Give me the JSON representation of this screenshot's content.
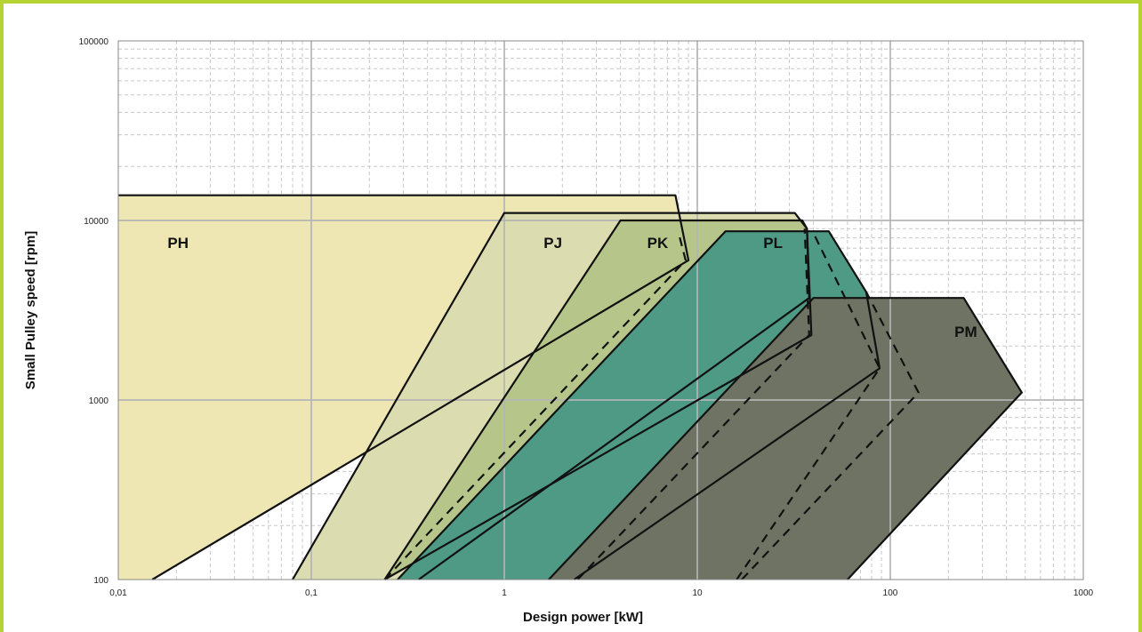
{
  "chart_data": {
    "type": "area",
    "xscale": "log",
    "yscale": "log",
    "xlim": [
      0.01,
      1000
    ],
    "ylim": [
      100,
      100000
    ],
    "xlabel": "Design power [kW]",
    "ylabel": "Small Pulley speed [rpm]",
    "xticks": [
      "0,01",
      "0,1",
      "1",
      "10",
      "100",
      "1000"
    ],
    "yticks": [
      "100",
      "1000",
      "10000",
      "100000"
    ],
    "grid": true,
    "colors": {
      "frame": "#b6d334",
      "PH": "#eee7b3",
      "PJ": "#dcdcb1",
      "PK": "#b6c68a",
      "PL": "#4e9a85",
      "PM": "#6e7363",
      "grid_major": "#c8c8c8",
      "grid_minor": "#c8c8c8"
    },
    "series": [
      {
        "name": "PH",
        "region": [
          [
            0.008,
            100
          ],
          [
            0.008,
            13800
          ],
          [
            7.7,
            13800
          ],
          [
            9,
            6000
          ],
          [
            0.015,
            100
          ]
        ]
      },
      {
        "name": "PJ",
        "region": [
          [
            0.08,
            100
          ],
          [
            1,
            11000
          ],
          [
            32,
            11000
          ],
          [
            37,
            9000
          ],
          [
            38,
            3700
          ],
          [
            0.36,
            100
          ]
        ]
      },
      {
        "name": "PK",
        "region": [
          [
            0.24,
            100
          ],
          [
            4,
            10000
          ],
          [
            35,
            10000
          ],
          [
            37,
            9000
          ],
          [
            39,
            2300
          ],
          [
            0.24,
            100
          ]
        ]
      },
      {
        "name": "PL",
        "region": [
          [
            0.28,
            100
          ],
          [
            14,
            8700
          ],
          [
            48,
            8700
          ],
          [
            75,
            4000
          ],
          [
            88,
            1500
          ],
          [
            2.3,
            100
          ]
        ]
      },
      {
        "name": "PM",
        "region": [
          [
            1.7,
            100
          ],
          [
            40,
            3700
          ],
          [
            240,
            3700
          ],
          [
            480,
            1100
          ],
          [
            60,
            100
          ]
        ]
      }
    ],
    "dashed_lines": [
      {
        "name": "PH-dashed",
        "points": [
          [
            0.24,
            100
          ],
          [
            8.7,
            6000
          ],
          [
            8,
            8500
          ]
        ]
      },
      {
        "name": "PJ-dashed",
        "points": [
          [
            2.4,
            100
          ],
          [
            38,
            2300
          ],
          [
            36,
            9000
          ]
        ]
      },
      {
        "name": "PK-dashed",
        "points": [
          [
            16,
            100
          ],
          [
            88,
            1500
          ],
          [
            40,
            8500
          ]
        ]
      },
      {
        "name": "PL-dashed",
        "points": [
          [
            17,
            100
          ],
          [
            140,
            1100
          ],
          [
            75,
            4000
          ]
        ]
      }
    ],
    "labels": [
      {
        "text": "PH",
        "x": 0.018,
        "y": 7500
      },
      {
        "text": "PJ",
        "x": 1.6,
        "y": 7500
      },
      {
        "text": "PK",
        "x": 5.5,
        "y": 7500
      },
      {
        "text": "PL",
        "x": 22,
        "y": 7500
      },
      {
        "text": "PM",
        "x": 215,
        "y": 2400
      }
    ]
  }
}
